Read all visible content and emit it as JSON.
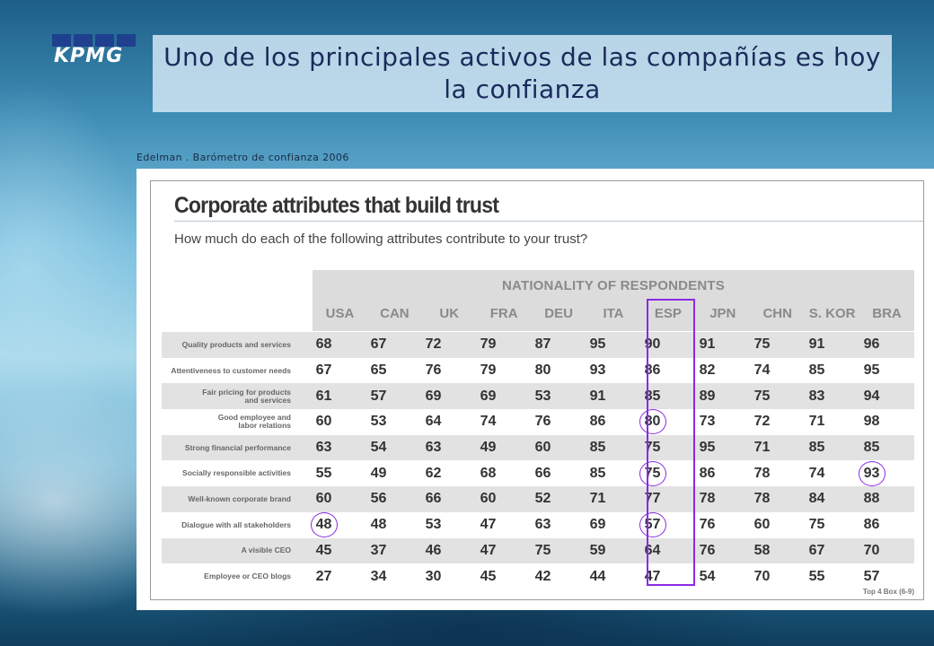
{
  "logo": {
    "text": "KPMG"
  },
  "slide_title": "Uno de los principales activos de las compañías es hoy la confianza",
  "source": "Edelman . Barómetro de confianza 2006",
  "table": {
    "heading": "Corporate attributes that build trust",
    "question": "How much do each of the following attributes contribute to your trust?",
    "group_header": "NATIONALITY OF RESPONDENTS",
    "columns": [
      "USA",
      "CAN",
      "UK",
      "FRA",
      "DEU",
      "ITA",
      "ESP",
      "JPN",
      "CHN",
      "S. KOR",
      "BRA"
    ],
    "rows": [
      {
        "label": "Quality products and services",
        "values": [
          68,
          67,
          72,
          79,
          87,
          95,
          90,
          91,
          75,
          91,
          96
        ]
      },
      {
        "label": "Attentiveness to customer needs",
        "values": [
          67,
          65,
          76,
          79,
          80,
          93,
          86,
          82,
          74,
          85,
          95
        ]
      },
      {
        "label": "Fair pricing for products\nand services",
        "values": [
          61,
          57,
          69,
          69,
          53,
          91,
          85,
          89,
          75,
          83,
          94
        ]
      },
      {
        "label": "Good employee and\nlabor relations",
        "values": [
          60,
          53,
          64,
          74,
          76,
          86,
          80,
          73,
          72,
          71,
          98
        ]
      },
      {
        "label": "Strong financial performance",
        "values": [
          63,
          54,
          63,
          49,
          60,
          85,
          75,
          95,
          71,
          85,
          85
        ]
      },
      {
        "label": "Socially responsible activities",
        "values": [
          55,
          49,
          62,
          68,
          66,
          85,
          75,
          86,
          78,
          74,
          93
        ]
      },
      {
        "label": "Well-known corporate brand",
        "values": [
          60,
          56,
          66,
          60,
          52,
          71,
          77,
          78,
          78,
          84,
          88
        ]
      },
      {
        "label": "Dialogue with all stakeholders",
        "values": [
          48,
          48,
          53,
          47,
          63,
          69,
          57,
          76,
          60,
          75,
          86
        ]
      },
      {
        "label": "A visible CEO",
        "values": [
          45,
          37,
          46,
          47,
          75,
          59,
          64,
          76,
          58,
          67,
          70
        ]
      },
      {
        "label": "Employee or CEO blogs",
        "values": [
          27,
          34,
          30,
          45,
          42,
          44,
          47,
          54,
          70,
          55,
          57
        ]
      }
    ],
    "footnote": "Top 4 Box (6-9)",
    "highlight_color": "#8a2be2"
  }
}
